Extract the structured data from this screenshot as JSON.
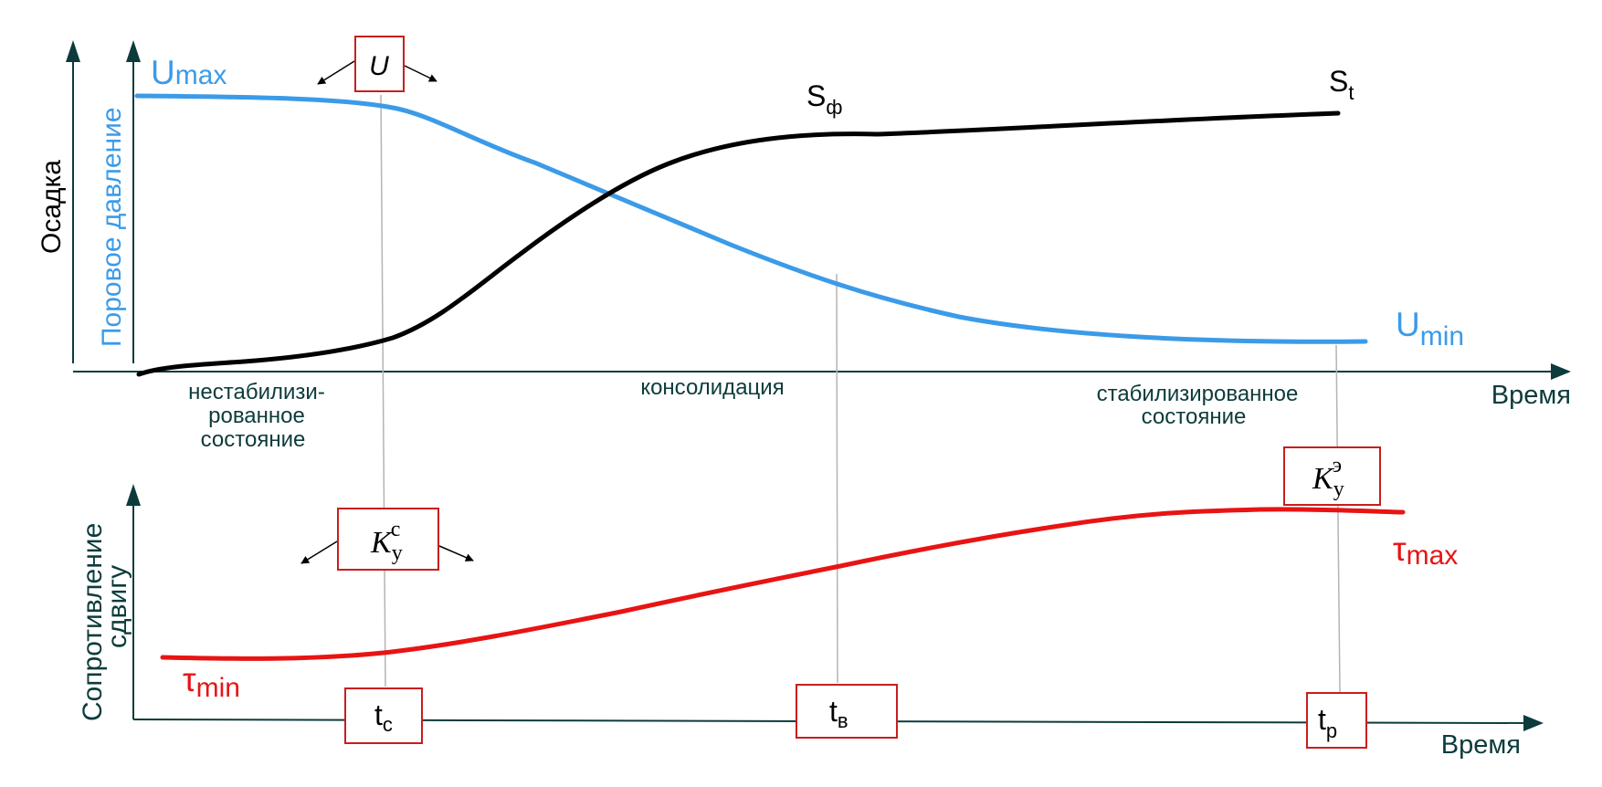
{
  "colors": {
    "axis": "#0d3b3b",
    "pore_pressure": "#3b9be8",
    "settlement": "#000000",
    "shear": "#e81414",
    "box": "#c81e1e",
    "guide": "#b4b4b4"
  },
  "top_chart": {
    "y_label_black": "Осадка",
    "y_label_blue": "Поровое давление",
    "x_label": "Время",
    "u_max": "U",
    "u_max_sub": "max",
    "u_min": "U",
    "u_min_sub": "min",
    "s_f": "S",
    "s_f_sub": "ф",
    "s_t": "S",
    "s_t_sub": "t",
    "u_box": "U",
    "stages": {
      "unstabilized_1": "нестабилизи-",
      "unstabilized_2": "рованное",
      "unstabilized_3": "состояние",
      "consolidation": "консолидация",
      "stabilized_1": "стабилизированное",
      "stabilized_2": "состояние"
    }
  },
  "bottom_chart": {
    "y_label_1": "Сопротивление",
    "y_label_2": "сдвигу",
    "x_label": "Время",
    "tau_max": "τ",
    "tau_max_sub": "max",
    "tau_min": "τ",
    "tau_min_sub": "min",
    "k_c_base": "K",
    "k_c_sub": "у",
    "k_c_sup": "с",
    "k_e_base": "K",
    "k_e_sub": "у",
    "k_e_sup": "э",
    "t_c": "t",
    "t_c_sub": "с",
    "t_v": "t",
    "t_v_sub": "в",
    "t_p": "t",
    "t_p_sub": "р"
  }
}
